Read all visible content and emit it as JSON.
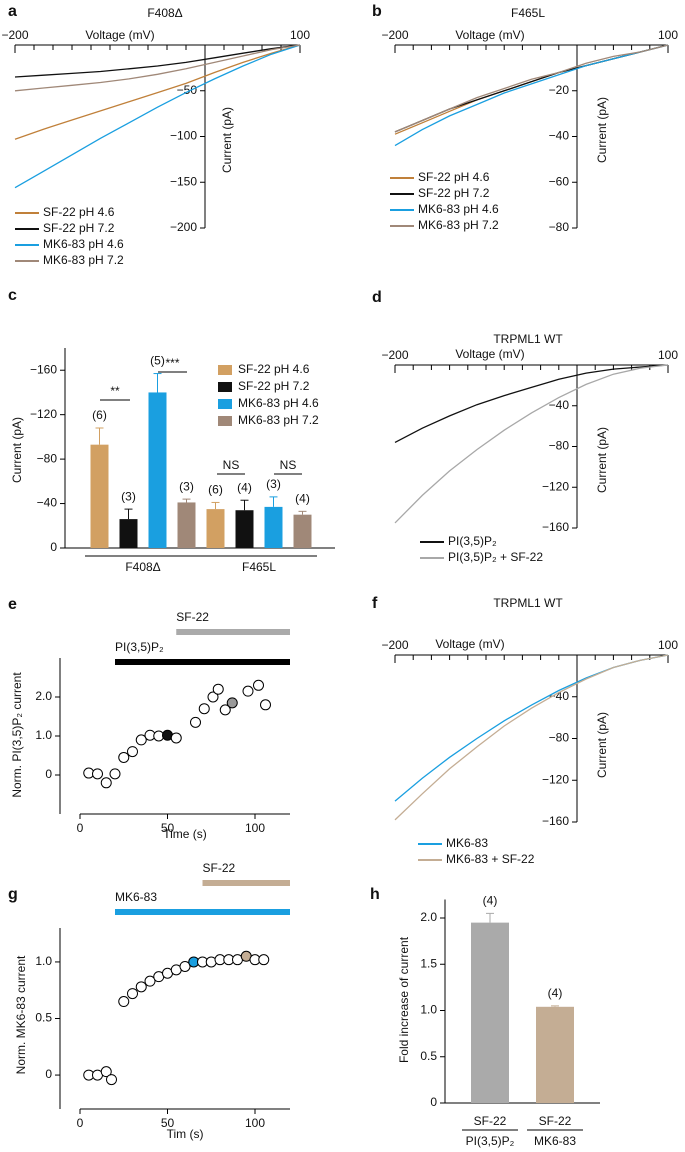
{
  "chart_data": [
    {
      "type": "line",
      "panel_label": "a",
      "title": "F408Δ",
      "xlabel": "Voltage (mV)",
      "ylabel": "Current (pA)",
      "xlim": [
        -200,
        100
      ],
      "ylim": [
        -200,
        0
      ],
      "xticks": [
        {
          "value": -200,
          "label": "−200"
        },
        100
      ],
      "xminorticks": [
        -180,
        -160,
        -140,
        -120,
        -100,
        -80,
        -60,
        -40,
        -20,
        20,
        40,
        60,
        80
      ],
      "yticks": [
        {
          "value": -50,
          "label": "−50"
        },
        {
          "value": -100,
          "label": "−100"
        },
        {
          "value": -150,
          "label": "−150"
        },
        {
          "value": -200,
          "label": "−200"
        }
      ],
      "x": [
        -200,
        -170,
        -140,
        -110,
        -80,
        -50,
        -20,
        10,
        40,
        70,
        100
      ],
      "series": [
        {
          "name": "SF-22 pH 4.6",
          "color": "#c0803a",
          "values": [
            -103,
            -92,
            -82,
            -72,
            -62,
            -52,
            -42,
            -30,
            -19,
            -9,
            0
          ]
        },
        {
          "name": "SF-22 pH 7.2",
          "color": "#111111",
          "values": [
            -35,
            -33,
            -31,
            -29,
            -26,
            -23,
            -19,
            -14,
            -9,
            -4,
            0
          ]
        },
        {
          "name": "MK6-83 pH 4.6",
          "color": "#1a9fe0",
          "values": [
            -156,
            -138,
            -120,
            -102,
            -85,
            -68,
            -52,
            -37,
            -23,
            -10,
            0
          ]
        },
        {
          "name": "MK6-83 pH 7.2",
          "color": "#a08878",
          "values": [
            -50,
            -47,
            -44,
            -41,
            -37,
            -32,
            -26,
            -19,
            -12,
            -5,
            0
          ]
        }
      ]
    },
    {
      "type": "line",
      "panel_label": "b",
      "title": "F465L",
      "xlabel": "Voltage (mV)",
      "ylabel": "Current (pA)",
      "xlim": [
        -200,
        100
      ],
      "ylim": [
        -80,
        0
      ],
      "xticks": [
        {
          "value": -200,
          "label": "−200"
        },
        100
      ],
      "xminorticks": [
        -180,
        -160,
        -140,
        -120,
        -100,
        -80,
        -60,
        -40,
        -20,
        20,
        40,
        60,
        80
      ],
      "yticks": [
        {
          "value": -20,
          "label": "−20"
        },
        {
          "value": -40,
          "label": "−40"
        },
        {
          "value": -60,
          "label": "−60"
        },
        {
          "value": -80,
          "label": "−80"
        }
      ],
      "x": [
        -200,
        -170,
        -140,
        -110,
        -80,
        -50,
        -20,
        10,
        40,
        70,
        100
      ],
      "series": [
        {
          "name": "SF-22 pH 4.6",
          "color": "#c0803a",
          "values": [
            -39,
            -34,
            -29,
            -24,
            -20,
            -16,
            -12,
            -9,
            -6,
            -3,
            0
          ]
        },
        {
          "name": "SF-22 pH 7.2",
          "color": "#111111",
          "values": [
            -38,
            -33,
            -28,
            -24,
            -20,
            -16,
            -12,
            -9,
            -6,
            -3,
            0
          ]
        },
        {
          "name": "MK6-83 pH 4.6",
          "color": "#1a9fe0",
          "values": [
            -44,
            -37,
            -31,
            -26,
            -21,
            -17,
            -13,
            -9,
            -6,
            -3,
            0
          ]
        },
        {
          "name": "MK6-83 pH 7.2",
          "color": "#a08878",
          "values": [
            -38,
            -33,
            -28,
            -23,
            -19,
            -15,
            -12,
            -8,
            -5,
            -3,
            0
          ]
        }
      ]
    },
    {
      "type": "bar",
      "panel_label": "c",
      "ylabel": "Current (pA)",
      "y_inverted": true,
      "ylim": [
        -180,
        0
      ],
      "yticks": [
        0,
        {
          "value": -40,
          "label": "−40"
        },
        {
          "value": -80,
          "label": "−80"
        },
        {
          "value": -120,
          "label": "−120"
        },
        {
          "value": -160,
          "label": "−160"
        }
      ],
      "groups": [
        "F408Δ",
        "F465L"
      ],
      "series": [
        {
          "name": "SF-22 pH 4.6",
          "color": "#d2a062",
          "values": [
            -93,
            -35
          ],
          "errors": [
            15,
            6
          ],
          "n_labels": [
            "(6)",
            "(6)"
          ]
        },
        {
          "name": "SF-22 pH 7.2",
          "color": "#111111",
          "values": [
            -26,
            -34
          ],
          "errors": [
            9,
            9
          ],
          "n_labels": [
            "(3)",
            "(4)"
          ]
        },
        {
          "name": "MK6-83 pH 4.6",
          "color": "#1a9fe0",
          "values": [
            -140,
            -37
          ],
          "errors": [
            17,
            9
          ],
          "n_labels": [
            "(5)",
            "(3)"
          ]
        },
        {
          "name": "MK6-83 pH 7.2",
          "color": "#a08878",
          "values": [
            -41,
            -30
          ],
          "errors": [
            3,
            3
          ],
          "n_labels": [
            "(3)",
            "(4)"
          ]
        }
      ],
      "significance": [
        "**",
        "***",
        "NS",
        "NS"
      ]
    },
    {
      "type": "line",
      "panel_label": "d",
      "title": "TRPML1 WT",
      "xlabel": "Voltage (mV)",
      "ylabel": "Current (pA)",
      "xlim": [
        -200,
        100
      ],
      "ylim": [
        -160,
        0
      ],
      "xticks": [
        {
          "value": -200,
          "label": "−200"
        },
        100
      ],
      "xminorticks": [
        -180,
        -160,
        -140,
        -120,
        -100,
        -80,
        -60,
        -40,
        -20,
        20,
        40,
        60,
        80
      ],
      "yticks": [
        {
          "value": -40,
          "label": "−40"
        },
        {
          "value": -80,
          "label": "−80"
        },
        {
          "value": -120,
          "label": "−120"
        },
        {
          "value": -160,
          "label": "−160"
        }
      ],
      "x": [
        -200,
        -170,
        -140,
        -110,
        -80,
        -50,
        -20,
        10,
        40,
        70,
        100
      ],
      "series": [
        {
          "name": "PI(3,5)P₂",
          "color": "#111111",
          "values": [
            -76,
            -62,
            -50,
            -39,
            -30,
            -22,
            -14,
            -8,
            -4,
            -2,
            0
          ]
        },
        {
          "name": "PI(3,5)P₂ + SF-22",
          "color": "#a8a8a8",
          "values": [
            -155,
            -128,
            -104,
            -83,
            -64,
            -47,
            -32,
            -19,
            -9,
            -3,
            0
          ]
        }
      ]
    },
    {
      "type": "scatter",
      "panel_label": "e",
      "xlabel": "Time (s)",
      "ylabel": "Norm. PI(3,5)P₂ current",
      "xlim": [
        -10,
        120
      ],
      "ylim": [
        -1,
        3
      ],
      "xticks": [
        0,
        50,
        100
      ],
      "yticks": [
        0,
        {
          "value": 1,
          "label": "1.0"
        },
        {
          "value": 2,
          "label": "2.0"
        }
      ],
      "x": [
        5,
        10,
        15,
        20,
        25,
        30,
        35,
        40,
        45,
        50,
        55,
        66,
        71,
        76,
        79,
        83,
        87,
        96,
        102,
        106
      ],
      "values": [
        0.05,
        0.03,
        -0.2,
        0.03,
        0.45,
        0.6,
        0.9,
        1.02,
        1.0,
        1.02,
        0.95,
        1.35,
        1.7,
        2.0,
        2.2,
        1.67,
        1.85,
        2.15,
        2.3,
        1.8
      ],
      "point_colors": [
        "#ffffff",
        "#ffffff",
        "#ffffff",
        "#ffffff",
        "#ffffff",
        "#ffffff",
        "#ffffff",
        "#ffffff",
        "#ffffff",
        "#111111",
        "#ffffff",
        "#ffffff",
        "#ffffff",
        "#ffffff",
        "#ffffff",
        "#ffffff",
        "#999999",
        "#ffffff",
        "#ffffff",
        "#ffffff"
      ],
      "application_bars": [
        {
          "label": "SF-22",
          "start": 55,
          "end": 120,
          "color": "#aaaaaa"
        },
        {
          "label": "PI(3,5)P₂",
          "start": 20,
          "end": 120,
          "color": "#000000"
        }
      ]
    },
    {
      "type": "line",
      "panel_label": "f",
      "title": "TRPML1 WT",
      "xlabel": "Voltage (mV)",
      "ylabel": "Current (pA)",
      "xlim": [
        -200,
        100
      ],
      "ylim": [
        -160,
        0
      ],
      "xticks": [
        {
          "value": -200,
          "label": "−200"
        },
        100
      ],
      "xminorticks": [
        -180,
        -160,
        -140,
        -120,
        -100,
        -80,
        -60,
        -40,
        -20,
        20,
        40,
        60,
        80
      ],
      "yticks": [
        {
          "value": -40,
          "label": "−40"
        },
        {
          "value": -80,
          "label": "−80"
        },
        {
          "value": -120,
          "label": "−120"
        },
        {
          "value": -160,
          "label": "−160"
        }
      ],
      "x": [
        -200,
        -170,
        -140,
        -110,
        -80,
        -50,
        -20,
        10,
        40,
        70,
        100
      ],
      "series": [
        {
          "name": "MK6-83",
          "color": "#1a9fe0",
          "values": [
            -140,
            -118,
            -98,
            -80,
            -63,
            -48,
            -34,
            -22,
            -12,
            -5,
            0
          ]
        },
        {
          "name": "MK6-83 + SF-22",
          "color": "#c4ad94",
          "values": [
            -158,
            -133,
            -109,
            -88,
            -68,
            -51,
            -36,
            -23,
            -12,
            -5,
            0
          ]
        }
      ]
    },
    {
      "type": "scatter",
      "panel_label": "g",
      "xlabel": "Tim (s)",
      "ylabel": "Norm. MK6-83 current",
      "xlim": [
        -10,
        120
      ],
      "ylim": [
        -0.3,
        1.3
      ],
      "xticks": [
        0,
        50,
        100
      ],
      "yticks": [
        0,
        0.5,
        {
          "value": 1,
          "label": "1.0"
        }
      ],
      "x": [
        5,
        10,
        15,
        18,
        25,
        30,
        35,
        40,
        45,
        50,
        55,
        60,
        65,
        70,
        75,
        80,
        85,
        90,
        95,
        100,
        105
      ],
      "values": [
        0,
        0,
        0.03,
        -0.04,
        0.65,
        0.72,
        0.78,
        0.83,
        0.87,
        0.9,
        0.93,
        0.96,
        1.0,
        1.0,
        1.0,
        1.02,
        1.02,
        1.02,
        1.05,
        1.02,
        1.02
      ],
      "point_colors": [
        "#ffffff",
        "#ffffff",
        "#ffffff",
        "#ffffff",
        "#ffffff",
        "#ffffff",
        "#ffffff",
        "#ffffff",
        "#ffffff",
        "#ffffff",
        "#ffffff",
        "#ffffff",
        "#1a9fe0",
        "#ffffff",
        "#ffffff",
        "#ffffff",
        "#ffffff",
        "#ffffff",
        "#c4ad94",
        "#ffffff",
        "#ffffff"
      ],
      "application_bars": [
        {
          "label": "MK6-83",
          "start": 20,
          "end": 120,
          "color": "#1a9fe0"
        },
        {
          "label": "SF-22",
          "start": 70,
          "end": 120,
          "color": "#c4ad94"
        }
      ]
    },
    {
      "type": "bar",
      "panel_label": "h",
      "ylabel": "Fold increase of current",
      "ylim": [
        0,
        2.2
      ],
      "yticks": [
        0,
        0.5,
        {
          "value": 1,
          "label": "1.0"
        },
        1.5,
        {
          "value": 2,
          "label": "2.0"
        }
      ],
      "categories": [
        "SF-22",
        "SF-22"
      ],
      "groups": [
        "PI(3,5)P₂",
        "MK6-83"
      ],
      "values": [
        1.95,
        1.04
      ],
      "errors": [
        0.1,
        0.01
      ],
      "n_labels": [
        "(4)",
        "(4)"
      ],
      "colors": [
        "#aaaaaa",
        "#c4ad94"
      ]
    }
  ]
}
